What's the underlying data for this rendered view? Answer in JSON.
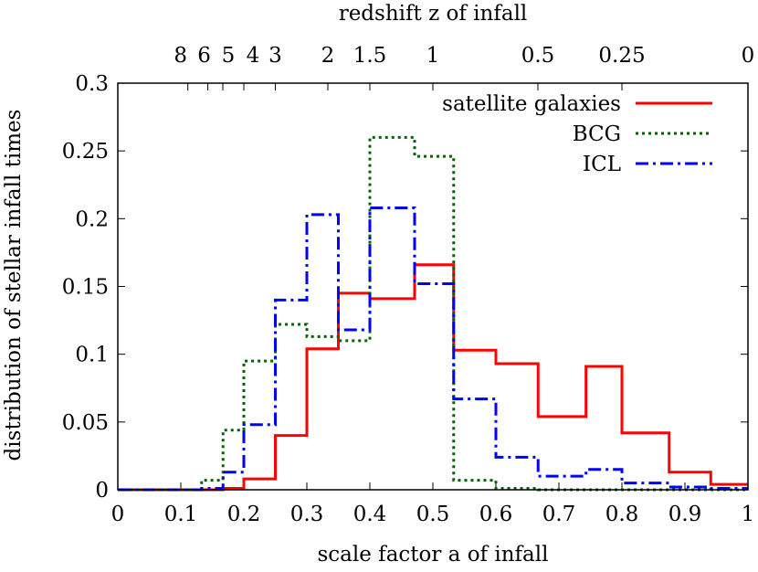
{
  "chart_data": {
    "type": "line",
    "title": "",
    "xlabel": "scale factor a of infall",
    "ylabel": "distribution of stellar infall times",
    "x2label": "redshift z of infall",
    "xlim": [
      0,
      1
    ],
    "ylim": [
      0,
      0.3
    ],
    "grid": false,
    "legend_position": "top-right",
    "xticks": [
      {
        "value": 0,
        "label": "0"
      },
      {
        "value": 0.1,
        "label": "0.1"
      },
      {
        "value": 0.2,
        "label": "0.2"
      },
      {
        "value": 0.3,
        "label": "0.3"
      },
      {
        "value": 0.4,
        "label": "0.4"
      },
      {
        "value": 0.5,
        "label": "0.5"
      },
      {
        "value": 0.6,
        "label": "0.6"
      },
      {
        "value": 0.7,
        "label": "0.7"
      },
      {
        "value": 0.8,
        "label": "0.8"
      },
      {
        "value": 0.9,
        "label": "0.9"
      },
      {
        "value": 1,
        "label": "1"
      }
    ],
    "yticks": [
      {
        "value": 0,
        "label": "0"
      },
      {
        "value": 0.05,
        "label": "0.05"
      },
      {
        "value": 0.1,
        "label": "0.1"
      },
      {
        "value": 0.15,
        "label": "0.15"
      },
      {
        "value": 0.2,
        "label": "0.2"
      },
      {
        "value": 0.25,
        "label": "0.25"
      },
      {
        "value": 0.3,
        "label": "0.3"
      }
    ],
    "top_ticks": [
      {
        "z": 8,
        "label": "8"
      },
      {
        "z": 6,
        "label": "6"
      },
      {
        "z": 5,
        "label": "5"
      },
      {
        "z": 4,
        "label": "4"
      },
      {
        "z": 3,
        "label": "3"
      },
      {
        "z": 2,
        "label": "2"
      },
      {
        "z": 1.5,
        "label": "1.5"
      },
      {
        "z": 1,
        "label": "1"
      },
      {
        "z": 0.5,
        "label": "0.5"
      },
      {
        "z": 0.25,
        "label": "0.25"
      },
      {
        "z": 0,
        "label": "0"
      }
    ],
    "bin_edges": [
      0,
      0.067,
      0.133,
      0.167,
      0.2,
      0.25,
      0.3,
      0.35,
      0.4,
      0.471,
      0.533,
      0.6,
      0.667,
      0.743,
      0.8,
      0.875,
      0.941,
      1.0
    ],
    "series": [
      {
        "name": "satellite galaxies",
        "color": "#ff0000",
        "style": "solid",
        "values": [
          0,
          0,
          0,
          0.001,
          0.008,
          0.04,
          0.104,
          0.145,
          0.141,
          0.166,
          0.103,
          0.093,
          0.054,
          0.091,
          0.042,
          0.013,
          0.004
        ]
      },
      {
        "name": "BCG",
        "color": "#006400",
        "style": "dotted",
        "values": [
          0,
          0,
          0.007,
          0.044,
          0.095,
          0.122,
          0.113,
          0.11,
          0.26,
          0.246,
          0.007,
          0.001,
          0,
          0,
          0,
          0,
          0
        ]
      },
      {
        "name": "ICL",
        "color": "#0000ff",
        "style": "dashdot",
        "values": [
          0,
          0,
          0.001,
          0.013,
          0.048,
          0.14,
          0.203,
          0.118,
          0.208,
          0.152,
          0.067,
          0.024,
          0.01,
          0.015,
          0.005,
          0.002,
          0.001
        ]
      }
    ]
  }
}
